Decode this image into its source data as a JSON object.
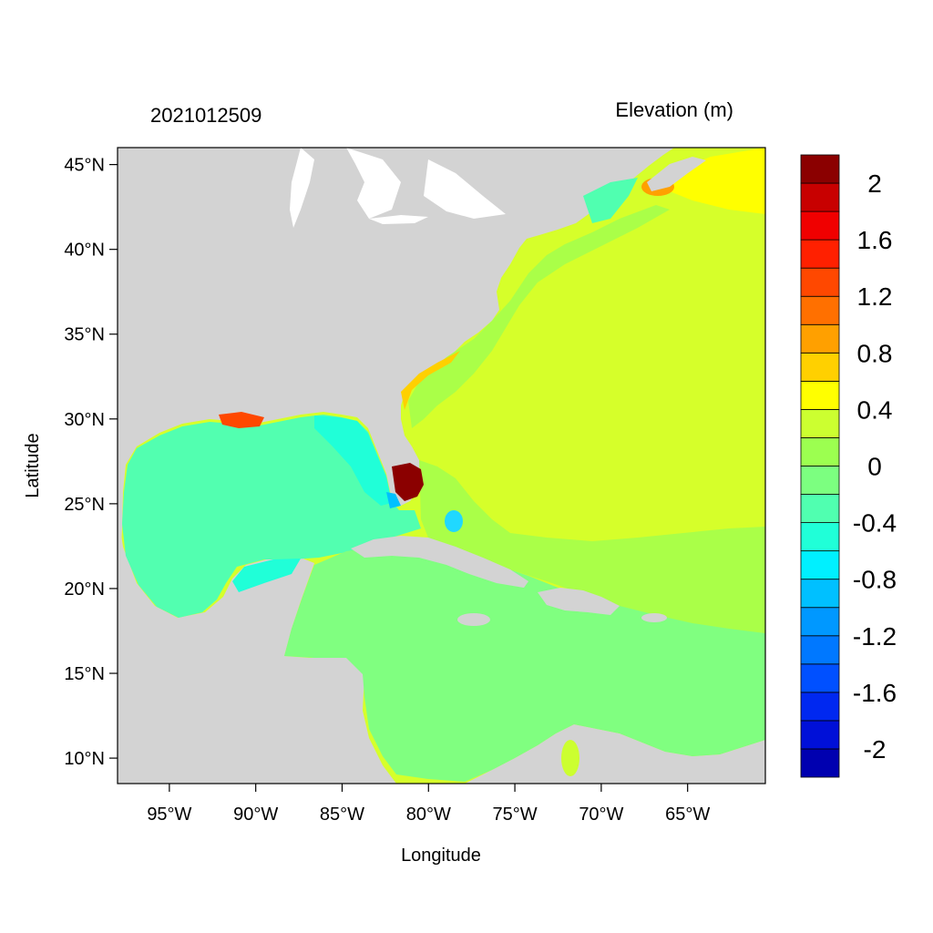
{
  "header": {
    "timestamp": "2021012509",
    "variable_title": "Elevation (m)"
  },
  "axes": {
    "xlabel": "Longitude",
    "ylabel": "Latitude",
    "lon_range": [
      -98,
      -60.5
    ],
    "lat_range": [
      8.5,
      46
    ],
    "x_ticks": [
      {
        "value": -95,
        "label": "95°W"
      },
      {
        "value": -90,
        "label": "90°W"
      },
      {
        "value": -85,
        "label": "85°W"
      },
      {
        "value": -80,
        "label": "80°W"
      },
      {
        "value": -75,
        "label": "75°W"
      },
      {
        "value": -70,
        "label": "70°W"
      },
      {
        "value": -65,
        "label": "65°W"
      }
    ],
    "y_ticks": [
      {
        "value": 45,
        "label": "45°N"
      },
      {
        "value": 40,
        "label": "40°N"
      },
      {
        "value": 35,
        "label": "35°N"
      },
      {
        "value": 30,
        "label": "30°N"
      },
      {
        "value": 25,
        "label": "25°N"
      },
      {
        "value": 20,
        "label": "20°N"
      },
      {
        "value": 15,
        "label": "15°N"
      },
      {
        "value": 10,
        "label": "10°N"
      }
    ]
  },
  "colorbar": {
    "levels": [
      -2.2,
      -2.0,
      -1.8,
      -1.6,
      -1.4,
      -1.2,
      -1.0,
      -0.8,
      -0.6,
      -0.4,
      -0.2,
      0.0,
      0.2,
      0.4,
      0.6,
      0.8,
      1.0,
      1.2,
      1.4,
      1.6,
      1.8,
      2.0,
      2.2
    ],
    "colors": [
      "#0000b0",
      "#0010d8",
      "#0028f0",
      "#0050ff",
      "#0078ff",
      "#0098ff",
      "#00c0ff",
      "#00f0ff",
      "#20ffd8",
      "#50ffb0",
      "#7cff80",
      "#9cff50",
      "#ccff30",
      "#ffff00",
      "#ffd000",
      "#ffa000",
      "#ff7000",
      "#ff4800",
      "#ff2000",
      "#f00000",
      "#c80000",
      "#8b0000"
    ],
    "tick_labels": [
      {
        "value": -2.0,
        "label": "-2"
      },
      {
        "value": -1.6,
        "label": "-1.6"
      },
      {
        "value": -1.2,
        "label": "-1.2"
      },
      {
        "value": -0.8,
        "label": "-0.8"
      },
      {
        "value": -0.4,
        "label": "-0.4"
      },
      {
        "value": 0.0,
        "label": "0"
      },
      {
        "value": 0.4,
        "label": "0.4"
      },
      {
        "value": 0.8,
        "label": "0.8"
      },
      {
        "value": 1.2,
        "label": "1.2"
      },
      {
        "value": 1.6,
        "label": "1.6"
      },
      {
        "value": 2.0,
        "label": "2"
      }
    ]
  },
  "colors": {
    "land": "#d3d3d3",
    "gulf": "#52ffb0",
    "caribbean": "#80ff80",
    "atlantic": "#d6ff2a",
    "shelf": "#aaff48",
    "high": "#ffff00",
    "surge": "#8b0000",
    "low": "#00e0ff"
  }
}
